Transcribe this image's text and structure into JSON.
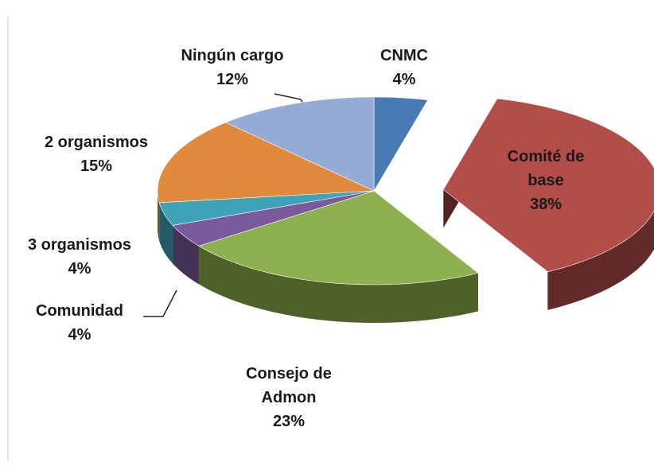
{
  "chart_data": {
    "type": "pie",
    "categories": [
      "CNMC",
      "Comité de base",
      "Consejo de Admon",
      "Comunidad",
      "3 organismos",
      "2 organismos",
      "Ningún cargo"
    ],
    "values": [
      4,
      38,
      23,
      4,
      4,
      15,
      12
    ],
    "value_labels": [
      "4%",
      "38%",
      "23%",
      "4%",
      "4%",
      "15%",
      "12%"
    ],
    "colors": [
      "#4a7ab5",
      "#b34d4a",
      "#8fb04e",
      "#7a5a9a",
      "#3fa3b8",
      "#e08a3e",
      "#95aad4"
    ],
    "exploded": "Comité de base"
  }
}
